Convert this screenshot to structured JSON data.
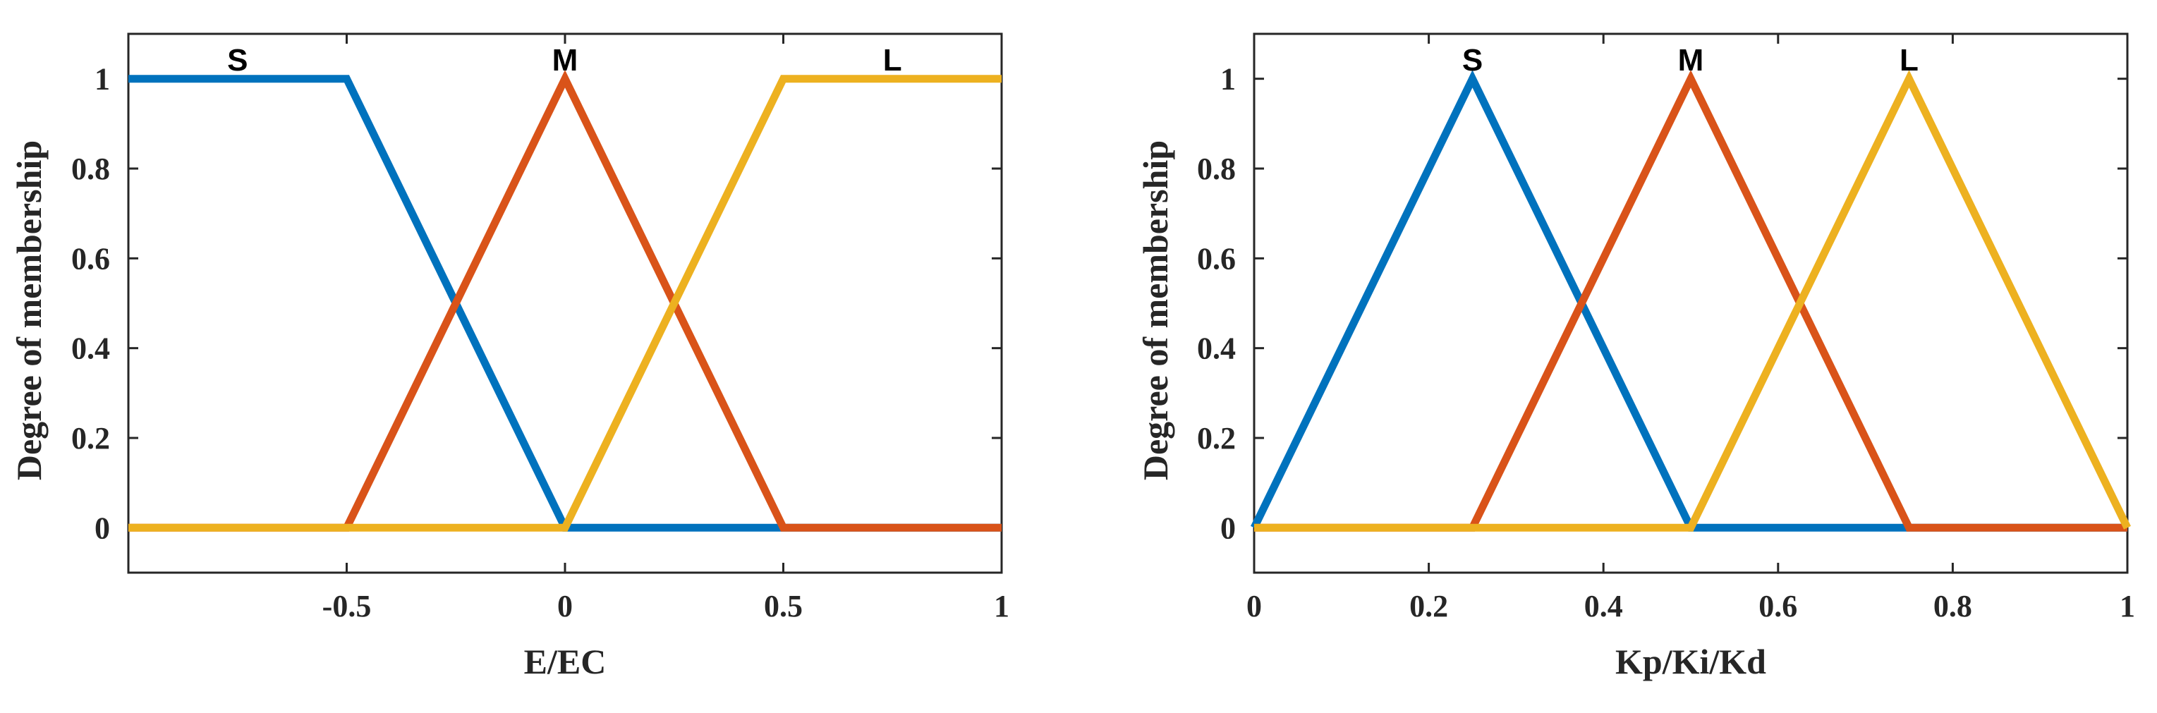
{
  "chart_data": [
    {
      "type": "line",
      "xlabel": "E/EC",
      "ylabel": "Degree of membership",
      "xlim": [
        -1,
        1
      ],
      "ylim": [
        -0.1,
        1.1
      ],
      "xticks": [
        -0.5,
        0,
        0.5,
        1
      ],
      "xtick_labels": [
        "-0.5",
        "0",
        "0.5",
        "1"
      ],
      "yticks": [
        0,
        0.2,
        0.4,
        0.6,
        0.8,
        1
      ],
      "ytick_labels": [
        "0",
        "0.2",
        "0.4",
        "0.6",
        "0.8",
        "1"
      ],
      "grid": false,
      "series": [
        {
          "name": "S",
          "color": "#0072BD",
          "x": [
            -1,
            -0.5,
            0,
            1
          ],
          "y": [
            1,
            1,
            0,
            0
          ]
        },
        {
          "name": "M",
          "color": "#D95319",
          "x": [
            -1,
            -0.5,
            0,
            0.5,
            1
          ],
          "y": [
            0,
            0,
            1,
            0,
            0
          ]
        },
        {
          "name": "L",
          "color": "#EDB120",
          "x": [
            -1,
            0,
            0.5,
            1
          ],
          "y": [
            0,
            0,
            1,
            1
          ]
        }
      ],
      "annotations": [
        {
          "text": "S",
          "x": -0.75,
          "y": 1.04
        },
        {
          "text": "M",
          "x": 0,
          "y": 1.04
        },
        {
          "text": "L",
          "x": 0.75,
          "y": 1.04
        }
      ]
    },
    {
      "type": "line",
      "xlabel": "Kp/Ki/Kd",
      "ylabel": "Degree of membership",
      "xlim": [
        0,
        1
      ],
      "ylim": [
        -0.1,
        1.1
      ],
      "xticks": [
        0,
        0.2,
        0.4,
        0.6,
        0.8,
        1
      ],
      "xtick_labels": [
        "0",
        "0.2",
        "0.4",
        "0.6",
        "0.8",
        "1"
      ],
      "yticks": [
        0,
        0.2,
        0.4,
        0.6,
        0.8,
        1
      ],
      "ytick_labels": [
        "0",
        "0.2",
        "0.4",
        "0.6",
        "0.8",
        "1"
      ],
      "grid": false,
      "series": [
        {
          "name": "S",
          "color": "#0072BD",
          "x": [
            0,
            0.25,
            0.5,
            1
          ],
          "y": [
            0,
            1,
            0,
            0
          ]
        },
        {
          "name": "M",
          "color": "#D95319",
          "x": [
            0,
            0.25,
            0.5,
            0.75,
            1
          ],
          "y": [
            0,
            0,
            1,
            0,
            0
          ]
        },
        {
          "name": "L",
          "color": "#EDB120",
          "x": [
            0,
            0.5,
            0.75,
            1
          ],
          "y": [
            0,
            0,
            1,
            0
          ]
        }
      ],
      "annotations": [
        {
          "text": "S",
          "x": 0.25,
          "y": 1.04
        },
        {
          "text": "M",
          "x": 0.5,
          "y": 1.04
        },
        {
          "text": "L",
          "x": 0.75,
          "y": 1.04
        }
      ]
    }
  ]
}
